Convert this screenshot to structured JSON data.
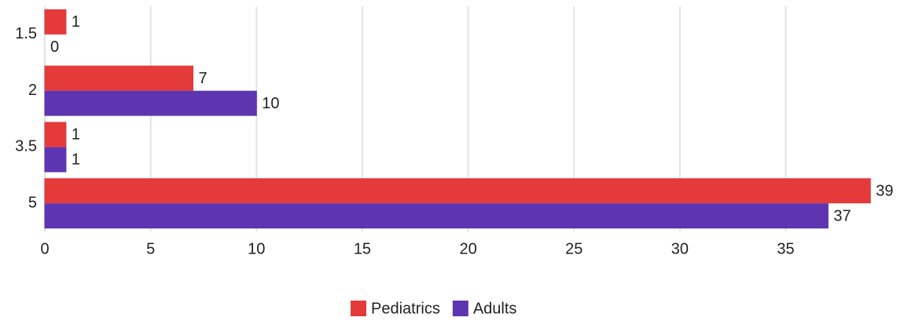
{
  "chart_data": {
    "type": "bar",
    "orientation": "horizontal",
    "categories": [
      "1.5",
      "2",
      "3.5",
      "5"
    ],
    "series": [
      {
        "name": "Pediatrics",
        "color": "#e53a3a",
        "values": [
          1,
          7,
          1,
          39
        ]
      },
      {
        "name": "Adults",
        "color": "#5e35b1",
        "values": [
          0,
          10,
          1,
          37
        ]
      }
    ],
    "xlim": [
      0,
      40
    ],
    "xticks": [
      0,
      5,
      10,
      15,
      20,
      25,
      30,
      35
    ],
    "grid": true,
    "legend": "bottom"
  }
}
